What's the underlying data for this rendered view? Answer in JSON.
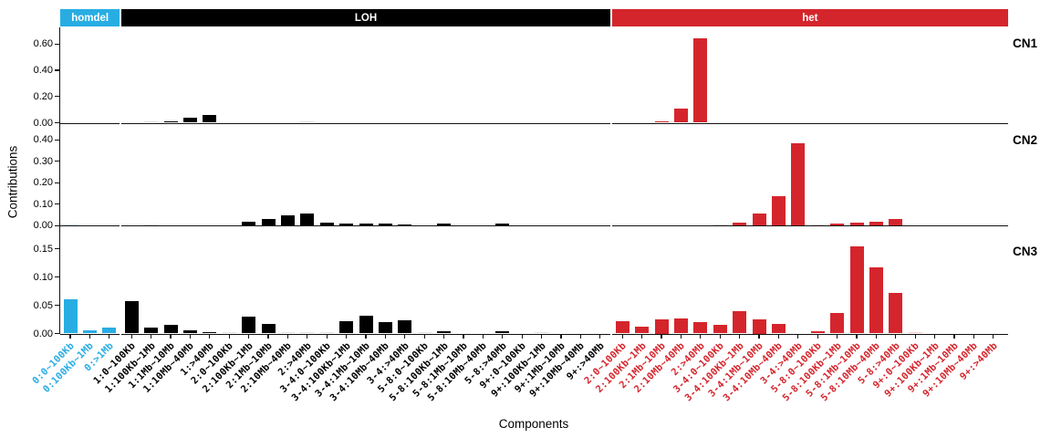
{
  "header": {
    "groups": [
      {
        "label": "homdel",
        "color": "#28ADE3"
      },
      {
        "label": "LOH",
        "color": "#000000"
      },
      {
        "label": "het",
        "color": "#D5252C"
      }
    ]
  },
  "chart_data": {
    "type": "bar",
    "title": "",
    "xlabel": "Components",
    "ylabel": "Contributions",
    "grid": false,
    "legend_position": "top-header-strip",
    "facet_titles": [
      "CN1",
      "CN2",
      "CN3"
    ],
    "group_order": [
      "homdel",
      "LOH",
      "het"
    ],
    "colors": {
      "homdel": "#28ADE3",
      "LOH": "#000000",
      "het": "#D5252C",
      "homdel_light": "#C6E9F7",
      "LOH_light": "#E2E2E2",
      "het_light": "#F6CDCE"
    },
    "categories": [
      {
        "label": "0:0~100Kb",
        "group": "homdel"
      },
      {
        "label": "0:100Kb~1Mb",
        "group": "homdel"
      },
      {
        "label": "0:>1Mb",
        "group": "homdel"
      },
      {
        "label": "1:0~100Kb",
        "group": "LOH"
      },
      {
        "label": "1:100Kb~1Mb",
        "group": "LOH"
      },
      {
        "label": "1:1Mb~10Mb",
        "group": "LOH"
      },
      {
        "label": "1:10Mb~40Mb",
        "group": "LOH"
      },
      {
        "label": "1:>40Mb",
        "group": "LOH"
      },
      {
        "label": "2:0~100Kb",
        "group": "LOH"
      },
      {
        "label": "2:100Kb~1Mb",
        "group": "LOH"
      },
      {
        "label": "2:1Mb~10Mb",
        "group": "LOH"
      },
      {
        "label": "2:10Mb~40Mb",
        "group": "LOH"
      },
      {
        "label": "2:>40Mb",
        "group": "LOH"
      },
      {
        "label": "3-4:0~100Kb",
        "group": "LOH"
      },
      {
        "label": "3-4:100Kb~1Mb",
        "group": "LOH"
      },
      {
        "label": "3-4:1Mb~10Mb",
        "group": "LOH"
      },
      {
        "label": "3-4:10Mb~40Mb",
        "group": "LOH"
      },
      {
        "label": "3-4:>40Mb",
        "group": "LOH"
      },
      {
        "label": "5-8:0~100Kb",
        "group": "LOH"
      },
      {
        "label": "5-8:100Kb~1Mb",
        "group": "LOH"
      },
      {
        "label": "5-8:1Mb~10Mb",
        "group": "LOH"
      },
      {
        "label": "5-8:10Mb~40Mb",
        "group": "LOH"
      },
      {
        "label": "5-8:>40Mb",
        "group": "LOH"
      },
      {
        "label": "9+:0~100Kb",
        "group": "LOH"
      },
      {
        "label": "9+:100Kb~1Mb",
        "group": "LOH"
      },
      {
        "label": "9+:1Mb~10Mb",
        "group": "LOH"
      },
      {
        "label": "9+:10Mb~40Mb",
        "group": "LOH"
      },
      {
        "label": "9+:>40Mb",
        "group": "LOH"
      },
      {
        "label": "2:0~100Kb",
        "group": "het"
      },
      {
        "label": "2:100Kb~1Mb",
        "group": "het"
      },
      {
        "label": "2:1Mb~10Mb",
        "group": "het"
      },
      {
        "label": "2:10Mb~40Mb",
        "group": "het"
      },
      {
        "label": "2:>40Mb",
        "group": "het"
      },
      {
        "label": "3-4:0~100Kb",
        "group": "het"
      },
      {
        "label": "3-4:100Kb~1Mb",
        "group": "het"
      },
      {
        "label": "3-4:1Mb~10Mb",
        "group": "het"
      },
      {
        "label": "3-4:10Mb~40Mb",
        "group": "het"
      },
      {
        "label": "3-4:>40Mb",
        "group": "het"
      },
      {
        "label": "5-8:0~100Kb",
        "group": "het"
      },
      {
        "label": "5-8:100Kb~1Mb",
        "group": "het"
      },
      {
        "label": "5-8:1Mb~10Mb",
        "group": "het"
      },
      {
        "label": "5-8:10Mb~40Mb",
        "group": "het"
      },
      {
        "label": "5-8:>40Mb",
        "group": "het"
      },
      {
        "label": "9+:0~100Kb",
        "group": "het"
      },
      {
        "label": "9+:100Kb~1Mb",
        "group": "het"
      },
      {
        "label": "9+:1Mb~10Mb",
        "group": "het"
      },
      {
        "label": "9+:10Mb~40Mb",
        "group": "het"
      },
      {
        "label": "9+:>40Mb",
        "group": "het"
      }
    ],
    "series": [
      {
        "name": "CN1",
        "values": [
          0,
          0,
          0,
          0,
          0.004,
          0.012,
          0.035,
          0.06,
          0,
          0,
          0,
          0,
          0.004,
          0,
          0,
          0,
          0,
          0,
          0,
          0,
          0,
          0,
          0,
          0,
          0,
          0,
          0,
          0,
          0,
          0,
          0.012,
          0.11,
          0.64,
          0,
          0,
          0,
          0,
          0,
          0,
          0,
          0,
          0,
          0,
          0,
          0,
          0,
          0,
          0
        ],
        "light_bars": [
          4,
          12
        ]
      },
      {
        "name": "CN2",
        "values": [
          0.002,
          0,
          0,
          0,
          0.003,
          0,
          0,
          0,
          0,
          0.017,
          0.029,
          0.046,
          0.057,
          0.013,
          0.008,
          0.008,
          0.008,
          0.004,
          0,
          0.007,
          0,
          0,
          0.008,
          0,
          0,
          0,
          0,
          0,
          0,
          0,
          0,
          0,
          0,
          0.002,
          0.012,
          0.055,
          0.138,
          0.385,
          0.002,
          0.007,
          0.014,
          0.016,
          0.028,
          0,
          0,
          0,
          0,
          0
        ],
        "light_bars": [
          0,
          4,
          33,
          38
        ]
      },
      {
        "name": "CN3",
        "values": [
          0.061,
          0.006,
          0.011,
          0.057,
          0.01,
          0.016,
          0.005,
          0.002,
          0.001,
          0.03,
          0.017,
          0.001,
          0.001,
          0.001,
          0.022,
          0.032,
          0.02,
          0.023,
          0.001,
          0.004,
          0,
          0,
          0.004,
          0,
          0.001,
          0,
          0,
          0,
          0.022,
          0.012,
          0.025,
          0.027,
          0.02,
          0.016,
          0.039,
          0.025,
          0.017,
          0,
          0.004,
          0.036,
          0.154,
          0.117,
          0.071,
          0.002,
          0,
          0,
          0,
          0
        ],
        "light_bars": [
          8,
          11,
          12,
          13,
          18,
          24,
          43
        ]
      }
    ],
    "panels": [
      {
        "name": "CN1",
        "ylim": [
          0,
          0.72
        ],
        "yticks": [
          {
            "label": "0.00",
            "value": 0
          },
          {
            "label": "0.20",
            "value": 0.2
          },
          {
            "label": "0.40",
            "value": 0.4
          },
          {
            "label": "0.60",
            "value": 0.6
          }
        ]
      },
      {
        "name": "CN2",
        "ylim": [
          0,
          0.47
        ],
        "yticks": [
          {
            "label": "0.00",
            "value": 0
          },
          {
            "label": "0.10",
            "value": 0.1
          },
          {
            "label": "0.20",
            "value": 0.2
          },
          {
            "label": "0.30",
            "value": 0.3
          },
          {
            "label": "0.40",
            "value": 0.4
          }
        ]
      },
      {
        "name": "CN3",
        "ylim": [
          0,
          0.186
        ],
        "yticks": [
          {
            "label": "0.00",
            "value": 0
          },
          {
            "label": "0.05",
            "value": 0.05
          },
          {
            "label": "0.10",
            "value": 0.1
          },
          {
            "label": "0.15",
            "value": 0.15
          }
        ]
      }
    ]
  }
}
